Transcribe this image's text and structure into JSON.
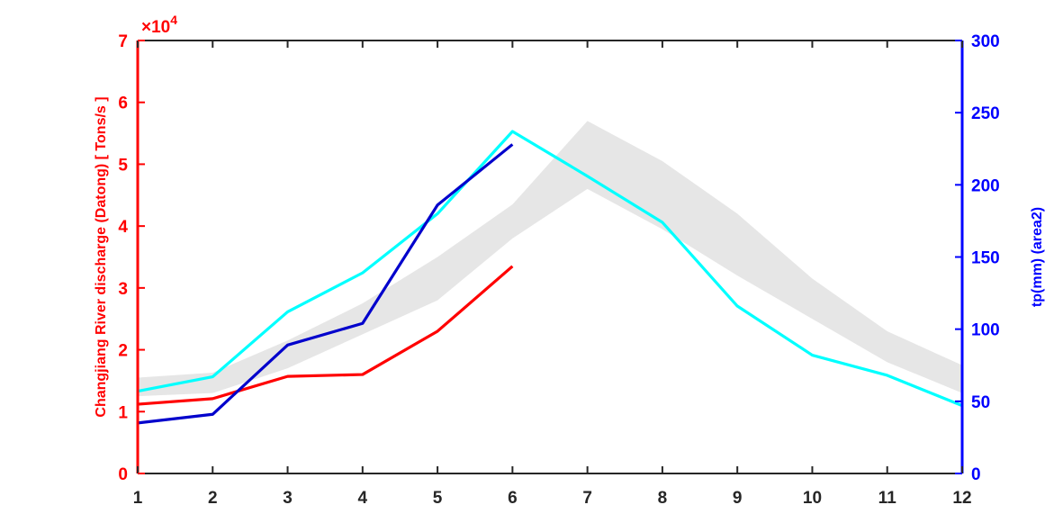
{
  "chart_data": {
    "type": "line",
    "x": [
      1,
      2,
      3,
      4,
      5,
      6,
      7,
      8,
      9,
      10,
      11,
      12
    ],
    "xlim": [
      1,
      12
    ],
    "x_ticks": [
      "1",
      "2",
      "3",
      "4",
      "5",
      "6",
      "7",
      "8",
      "9",
      "10",
      "11",
      "12"
    ],
    "left_axis": {
      "label": "Changjiang River discharge (Datong) [ Tons/s ]",
      "ylim": [
        0,
        7
      ],
      "ticks": [
        "0",
        "1",
        "2",
        "3",
        "4",
        "5",
        "6",
        "7"
      ],
      "exponent_label": "×10",
      "exponent_power": "4",
      "color": "#ff0000"
    },
    "right_axis": {
      "label": "tp(mm) (area2)",
      "ylim": [
        0,
        300
      ],
      "ticks": [
        "0",
        "50",
        "100",
        "150",
        "200",
        "250",
        "300"
      ],
      "color": "#0000ff"
    },
    "band": {
      "axis": "left",
      "color": "#e6e6e6",
      "lower": [
        1.25,
        1.3,
        1.7,
        2.25,
        2.8,
        3.8,
        4.6,
        3.95,
        3.2,
        2.5,
        1.8,
        1.3
      ],
      "upper": [
        1.55,
        1.63,
        2.15,
        2.75,
        3.5,
        4.35,
        5.7,
        5.05,
        4.2,
        3.15,
        2.3,
        1.75
      ]
    },
    "series": [
      {
        "axis": "left",
        "color": "#ff0000",
        "x": [
          1,
          2,
          3,
          4,
          5,
          6
        ],
        "values": [
          1.12,
          1.21,
          1.57,
          1.6,
          2.3,
          3.35
        ]
      },
      {
        "axis": "right",
        "color": "#00ffff",
        "x": [
          1,
          2,
          3,
          4,
          5,
          6,
          7,
          8,
          9,
          10,
          11,
          12
        ],
        "values": [
          57,
          67,
          112,
          139,
          180,
          237,
          206,
          174,
          116,
          82,
          68,
          47
        ]
      },
      {
        "axis": "right",
        "color": "#0000cc",
        "x": [
          1,
          2,
          3,
          4,
          5,
          6
        ],
        "values": [
          35,
          41,
          89,
          104,
          186,
          228
        ]
      }
    ],
    "grid": false,
    "legend": "none"
  }
}
